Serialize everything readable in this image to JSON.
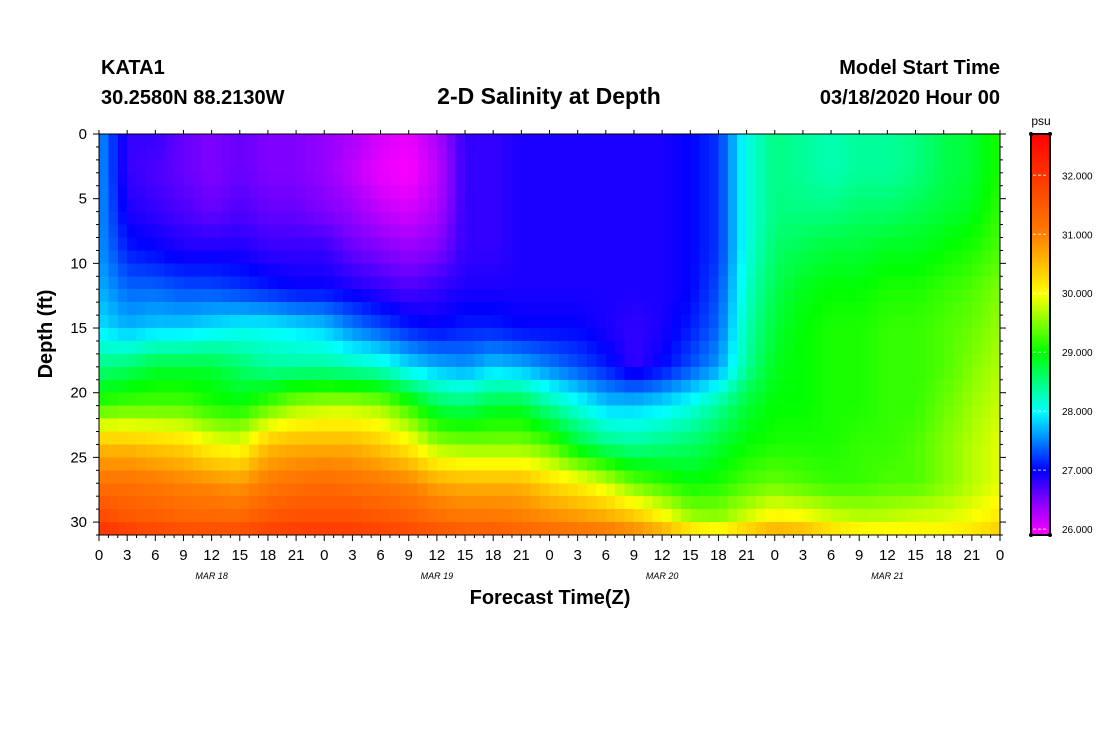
{
  "header": {
    "station": "KATA1",
    "location": "30.2580N 88.2130W",
    "title": "2-D Salinity at Depth",
    "model_start_label": "Model Start Time",
    "model_start_value": "03/18/2020 Hour 00"
  },
  "chart_data": {
    "type": "heatmap",
    "title": "2-D Salinity at Depth",
    "xlabel": "Forecast Time(Z)",
    "ylabel": "Depth (ft)",
    "x_tick_labels": [
      "0",
      "3",
      "6",
      "9",
      "12",
      "15",
      "18",
      "21",
      "0",
      "3",
      "6",
      "9",
      "12",
      "15",
      "18",
      "21",
      "0",
      "3",
      "6",
      "9",
      "12",
      "15",
      "18",
      "21",
      "0",
      "3",
      "6",
      "9",
      "12",
      "15",
      "18",
      "21",
      "0"
    ],
    "x_range_hours": [
      0,
      96
    ],
    "day_labels": [
      {
        "label": "MAR 18",
        "hour": 12
      },
      {
        "label": "MAR 19",
        "hour": 36
      },
      {
        "label": "MAR 20",
        "hour": 60
      },
      {
        "label": "MAR 21",
        "hour": 84
      }
    ],
    "y_tick_labels": [
      "0",
      "5",
      "10",
      "15",
      "20",
      "25",
      "30"
    ],
    "y_range_ft": [
      0,
      31
    ],
    "y_inverted": true,
    "colorbar": {
      "unit": "psu",
      "range": [
        25.9,
        32.7
      ],
      "tick_labels": [
        "26.000",
        "27.000",
        "28.000",
        "29.000",
        "30.000",
        "31.000",
        "32.000"
      ],
      "tick_values": [
        26,
        27,
        28,
        29,
        30,
        31,
        32
      ],
      "colors": [
        {
          "value": 25.9,
          "color": "#ff00ff"
        },
        {
          "value": 26.5,
          "color": "#8000ff"
        },
        {
          "value": 27.0,
          "color": "#0000ff"
        },
        {
          "value": 27.5,
          "color": "#0080ff"
        },
        {
          "value": 28.0,
          "color": "#00ffff"
        },
        {
          "value": 29.0,
          "color": "#00ff00"
        },
        {
          "value": 30.0,
          "color": "#ffff00"
        },
        {
          "value": 31.0,
          "color": "#ff8000"
        },
        {
          "value": 32.7,
          "color": "#ff0000"
        }
      ]
    },
    "grid_hours": [
      0,
      3,
      6,
      9,
      12,
      15,
      18,
      21,
      24,
      27,
      30,
      33,
      36,
      39,
      42,
      45,
      48,
      51,
      54,
      57,
      60,
      63,
      66,
      69,
      72,
      75,
      78,
      81,
      84,
      87,
      90,
      93,
      96
    ],
    "grid_depths_ft": [
      0,
      3,
      6,
      9,
      12,
      15,
      18,
      21,
      24,
      27,
      30,
      31
    ],
    "salinity_psu": [
      [
        27.6,
        26.8,
        26.8,
        26.6,
        26.5,
        26.6,
        26.5,
        26.5,
        26.4,
        26.3,
        26.1,
        26.0,
        26.3,
        26.8,
        26.8,
        26.9,
        26.9,
        26.9,
        26.9,
        26.9,
        26.9,
        27.0,
        27.2,
        28.1,
        28.5,
        28.4,
        28.3,
        28.4,
        28.4,
        28.5,
        28.7,
        28.8,
        29.1
      ],
      [
        27.6,
        26.8,
        26.7,
        26.6,
        26.5,
        26.6,
        26.5,
        26.5,
        26.4,
        26.2,
        26.0,
        25.9,
        26.2,
        26.8,
        26.8,
        26.9,
        26.9,
        26.9,
        26.9,
        26.9,
        26.9,
        27.0,
        27.2,
        28.1,
        28.5,
        28.4,
        28.3,
        28.4,
        28.4,
        28.5,
        28.7,
        28.8,
        29.1
      ],
      [
        27.6,
        26.9,
        26.8,
        26.7,
        26.6,
        26.7,
        26.6,
        26.6,
        26.5,
        26.4,
        26.2,
        26.1,
        26.3,
        26.8,
        26.8,
        26.9,
        26.9,
        26.9,
        26.9,
        26.9,
        26.9,
        27.0,
        27.2,
        28.1,
        28.5,
        28.5,
        28.5,
        28.6,
        28.6,
        28.7,
        28.8,
        28.9,
        29.2
      ],
      [
        27.6,
        27.1,
        27.0,
        26.9,
        26.9,
        26.9,
        26.8,
        26.8,
        26.8,
        26.6,
        26.5,
        26.4,
        26.5,
        26.8,
        26.8,
        26.9,
        26.9,
        26.9,
        26.9,
        26.9,
        26.9,
        27.0,
        27.2,
        28.1,
        28.6,
        28.7,
        28.8,
        28.8,
        28.9,
        28.9,
        29.0,
        29.1,
        29.3
      ],
      [
        27.7,
        27.4,
        27.4,
        27.3,
        27.3,
        27.2,
        27.1,
        27.0,
        27.0,
        26.9,
        26.8,
        26.7,
        26.8,
        26.9,
        26.9,
        26.9,
        26.9,
        26.9,
        26.9,
        26.9,
        26.9,
        27.0,
        27.3,
        28.2,
        28.7,
        28.9,
        29.0,
        29.0,
        29.1,
        29.1,
        29.2,
        29.3,
        29.5
      ],
      [
        27.9,
        27.7,
        27.8,
        27.8,
        27.9,
        28.0,
        28.0,
        27.9,
        27.8,
        27.5,
        27.3,
        27.1,
        27.0,
        27.1,
        27.1,
        27.0,
        27.0,
        27.0,
        26.9,
        26.8,
        26.9,
        27.1,
        27.4,
        28.3,
        28.8,
        29.0,
        29.1,
        29.1,
        29.2,
        29.2,
        29.3,
        29.4,
        29.6
      ],
      [
        28.5,
        28.6,
        28.8,
        28.8,
        28.8,
        28.6,
        28.4,
        28.4,
        28.4,
        28.3,
        28.2,
        27.9,
        27.7,
        27.6,
        27.8,
        27.7,
        27.5,
        27.3,
        27.1,
        26.8,
        27.0,
        27.3,
        27.6,
        28.4,
        28.9,
        29.0,
        29.1,
        29.1,
        29.2,
        29.2,
        29.3,
        29.5,
        29.7
      ],
      [
        29.2,
        29.3,
        29.3,
        29.3,
        29.1,
        29.0,
        29.3,
        29.6,
        29.7,
        29.7,
        29.6,
        29.2,
        28.7,
        28.6,
        28.8,
        28.8,
        28.4,
        28.1,
        27.8,
        27.8,
        27.9,
        28.1,
        28.4,
        28.8,
        29.0,
        29.0,
        29.1,
        29.1,
        29.2,
        29.2,
        29.4,
        29.6,
        29.8
      ],
      [
        30.5,
        30.5,
        30.4,
        30.3,
        30.0,
        29.9,
        30.5,
        30.6,
        30.6,
        30.6,
        30.4,
        30.1,
        29.6,
        29.5,
        29.5,
        29.5,
        29.3,
        28.8,
        28.5,
        28.4,
        28.5,
        28.6,
        28.8,
        29.0,
        29.1,
        29.1,
        29.1,
        29.2,
        29.2,
        29.3,
        29.5,
        29.7,
        29.9
      ],
      [
        31.2,
        31.2,
        31.1,
        31.0,
        30.9,
        30.8,
        31.1,
        31.2,
        31.3,
        31.2,
        31.1,
        31.0,
        30.7,
        30.6,
        30.6,
        30.6,
        30.3,
        30.1,
        29.8,
        29.4,
        29.2,
        29.0,
        29.1,
        29.3,
        29.4,
        29.3,
        29.2,
        29.2,
        29.3,
        29.3,
        29.5,
        29.7,
        29.9
      ],
      [
        31.8,
        31.6,
        31.5,
        31.4,
        31.4,
        31.4,
        31.6,
        31.7,
        31.7,
        31.7,
        31.6,
        31.5,
        31.3,
        31.2,
        31.2,
        31.1,
        31.0,
        30.9,
        30.8,
        30.6,
        30.2,
        29.7,
        29.6,
        29.9,
        30.2,
        30.1,
        29.9,
        29.8,
        29.8,
        29.9,
        29.9,
        30.0,
        30.2
      ],
      [
        32.2,
        32.0,
        31.9,
        31.8,
        31.8,
        31.8,
        31.9,
        32.0,
        32.0,
        32.0,
        31.9,
        31.8,
        31.7,
        31.6,
        31.6,
        31.5,
        31.4,
        31.3,
        31.2,
        31.1,
        30.9,
        30.6,
        30.4,
        30.7,
        30.9,
        30.8,
        30.5,
        30.3,
        30.2,
        30.2,
        30.2,
        30.3,
        30.5
      ]
    ]
  }
}
